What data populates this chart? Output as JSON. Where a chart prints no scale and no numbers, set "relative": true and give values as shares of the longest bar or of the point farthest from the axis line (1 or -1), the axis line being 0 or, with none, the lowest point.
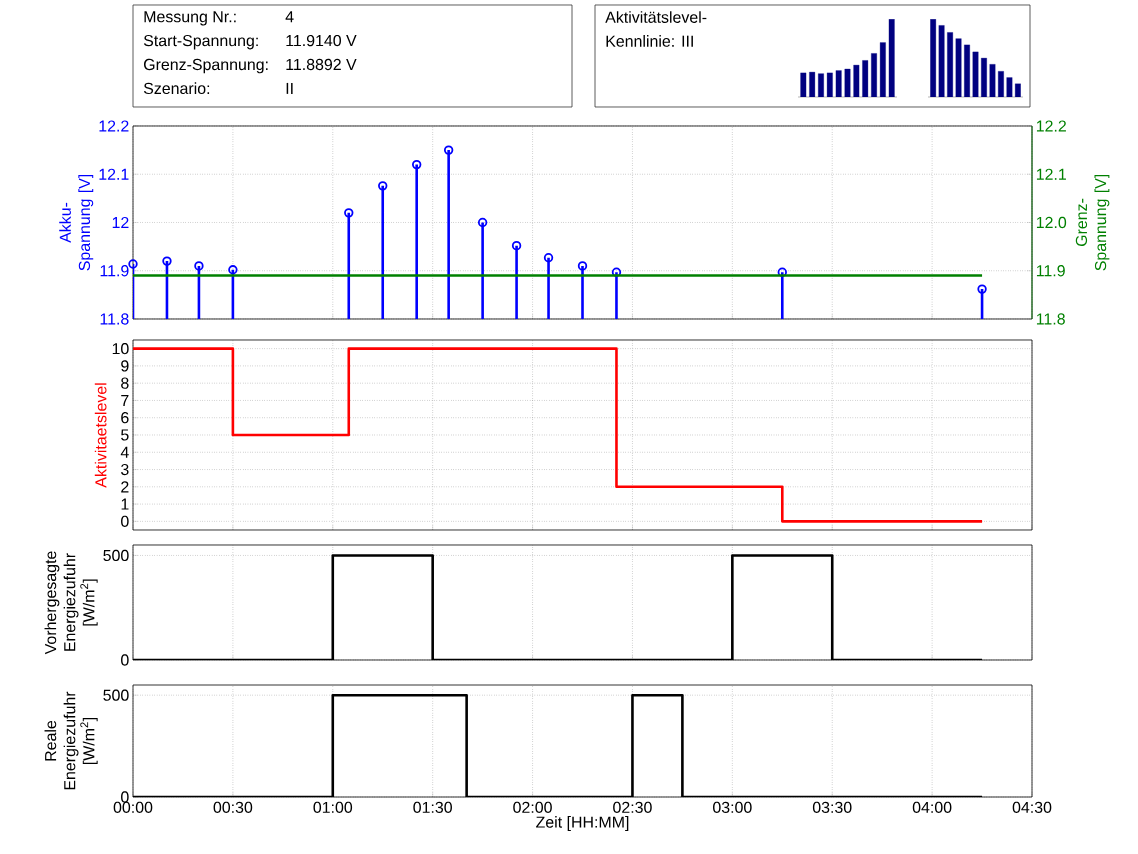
{
  "chart_data": [
    {
      "type": "other",
      "annotations": [
        "Messung Nr.:",
        "4",
        "Start-Spannung:",
        "11.9140 V",
        "Grenz-Spannung:",
        "11.8892 V",
        "Szenario:",
        "II"
      ]
    },
    {
      "type": "other",
      "annotations": [
        "Aktivitätslevel-Kennlinie: III"
      ]
    },
    {
      "type": "bar",
      "relative": true,
      "categories": [
        null,
        null,
        null,
        null,
        null,
        null,
        null,
        null,
        null,
        null,
        null
      ],
      "values": [
        0.31,
        0.32,
        0.3,
        0.31,
        0.34,
        0.36,
        0.41,
        0.47,
        0.56,
        0.7,
        1
      ],
      "color": "#000080"
    },
    {
      "type": "bar",
      "relative": true,
      "categories": [
        null,
        null,
        null,
        null,
        null,
        null,
        null,
        null,
        null,
        null,
        null
      ],
      "values": [
        1,
        0.92,
        0.83,
        0.75,
        0.67,
        0.58,
        0.5,
        0.42,
        0.33,
        0.25,
        0.17
      ],
      "color": "#000080"
    },
    {
      "type": "lollipop",
      "ylabel": "Akku-Spannung [V]",
      "y2label": "Grenz-Spannung [V]",
      "grid": true,
      "tick_labels": "y",
      "xlim": [
        0,
        4.5
      ],
      "xticks": [
        0,
        0.5,
        1,
        1.5,
        2,
        2.5,
        3,
        3.5,
        4,
        4.5
      ],
      "ylim": [
        11.8,
        12.2
      ],
      "yticks": [
        11.8,
        11.9,
        12,
        12.1,
        12.2
      ],
      "y2lim": [
        11.8,
        12.2
      ],
      "y2ticks": [
        11.8,
        11.9,
        {
          "value": 12.0,
          "label": "12.0"
        },
        12.1,
        12.2
      ],
      "series": [
        {
          "type": "lollipop",
          "color": "#0000ff",
          "marker": "circle",
          "x": [
            0,
            0.17,
            0.33,
            0.5,
            1.08,
            1.25,
            1.42,
            1.58,
            1.75,
            1.92,
            2.08,
            2.25,
            2.42,
            3.25,
            4.25
          ],
          "values": [
            11.914,
            11.92,
            11.91,
            11.902,
            12.02,
            12.076,
            12.12,
            12.15,
            12.0,
            11.952,
            11.927,
            11.91,
            11.897,
            11.897,
            11.862
          ]
        },
        {
          "type": "line",
          "axis": "y2",
          "color": "#008000",
          "x": [
            0,
            4.25
          ],
          "values": [
            11.89,
            11.89
          ]
        }
      ]
    },
    {
      "type": "step",
      "ylabel": "Aktivitaetslevel",
      "grid": true,
      "tick_labels": "y",
      "xlim": [
        0,
        4.5
      ],
      "xticks": [
        0,
        0.5,
        1,
        1.5,
        2,
        2.5,
        3,
        3.5,
        4,
        4.5
      ],
      "ylim": [
        -0.5,
        10.5
      ],
      "yticks": [
        0,
        1,
        2,
        3,
        4,
        5,
        6,
        7,
        8,
        9,
        10
      ],
      "series": [
        {
          "color": "#ff0000",
          "x": [
            0,
            0.5,
            1.08,
            2.42,
            3.25,
            4.25
          ],
          "values": [
            10,
            5,
            10,
            2,
            0,
            0
          ]
        }
      ]
    },
    {
      "type": "step",
      "ylabel": "Vorhergesagte Energiezufuhr [W/m$^{2}$]",
      "grid": true,
      "tick_labels": "y",
      "xlim": [
        0,
        4.5
      ],
      "xticks": [
        0,
        0.5,
        1,
        1.5,
        2,
        2.5,
        3,
        3.5,
        4,
        4.5
      ],
      "ylim": [
        0,
        550
      ],
      "yticks": [
        0,
        500
      ],
      "series": [
        {
          "color": "#000000",
          "x": [
            0,
            1,
            1.5,
            3,
            3.5,
            4.25
          ],
          "values": [
            0,
            500,
            0,
            500,
            0,
            0
          ]
        }
      ]
    },
    {
      "type": "step",
      "ylabel": "Reale Energiezufuhr [W/m$^{2}$]",
      "xlabel": "Zeit [HH:MM]",
      "grid": true,
      "xlim": [
        0,
        4.5
      ],
      "xticks": [
        {
          "value": 0,
          "label": "00:00"
        },
        {
          "value": 0.5,
          "label": "00:30"
        },
        {
          "value": 1,
          "label": "01:00"
        },
        {
          "value": 1.5,
          "label": "01:30"
        },
        {
          "value": 2,
          "label": "02:00"
        },
        {
          "value": 2.5,
          "label": "02:30"
        },
        {
          "value": 3,
          "label": "03:00"
        },
        {
          "value": 3.5,
          "label": "03:30"
        },
        {
          "value": 4,
          "label": "04:00"
        },
        {
          "value": 4.5,
          "label": "04:30"
        }
      ],
      "ylim": [
        0,
        550
      ],
      "yticks": [
        0,
        500
      ],
      "series": [
        {
          "color": "#000000",
          "x": [
            0,
            1,
            1.67,
            2.5,
            2.75,
            4.25
          ],
          "values": [
            0,
            500,
            0,
            500,
            0,
            0
          ]
        }
      ]
    }
  ]
}
